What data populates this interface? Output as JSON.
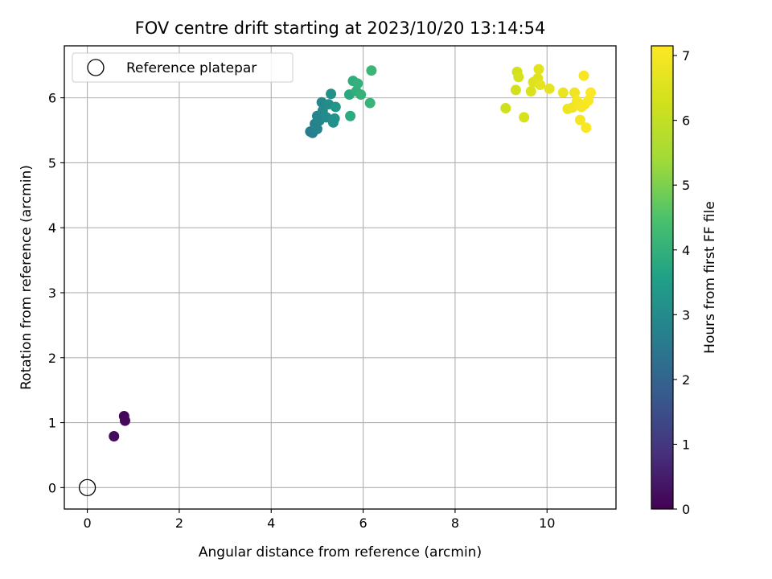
{
  "chart_data": {
    "type": "scatter",
    "title": "FOV centre drift starting at 2023/10/20 13:14:54",
    "xlabel": "Angular distance from reference (arcmin)",
    "ylabel": "Rotation from reference (arcmin)",
    "xlim": [
      -0.5,
      11.5
    ],
    "ylim": [
      -0.33,
      6.8
    ],
    "xticks": [
      0,
      2,
      4,
      6,
      8,
      10
    ],
    "yticks": [
      0,
      1,
      2,
      3,
      4,
      5,
      6
    ],
    "grid": true,
    "legend": {
      "position": "top-left",
      "entries": [
        {
          "label": "Reference platepar",
          "marker": "open-circle"
        }
      ]
    },
    "reference_point": {
      "x": 0,
      "y": 0
    },
    "colorbar": {
      "label": "Hours from first FF file",
      "colormap": "viridis",
      "range": [
        0,
        7.15
      ],
      "ticks": [
        0,
        1,
        2,
        3,
        4,
        5,
        6,
        7
      ]
    },
    "points": [
      {
        "x": 0.8,
        "y": 1.1,
        "c": 0.1
      },
      {
        "x": 0.82,
        "y": 1.03,
        "c": 0.15
      },
      {
        "x": 0.58,
        "y": 0.79,
        "c": 0.2
      },
      {
        "x": 4.85,
        "y": 5.48,
        "c": 2.6
      },
      {
        "x": 4.9,
        "y": 5.46,
        "c": 2.65
      },
      {
        "x": 4.95,
        "y": 5.6,
        "c": 2.7
      },
      {
        "x": 5.0,
        "y": 5.52,
        "c": 2.75
      },
      {
        "x": 5.0,
        "y": 5.72,
        "c": 2.8
      },
      {
        "x": 5.05,
        "y": 5.65,
        "c": 2.85
      },
      {
        "x": 5.1,
        "y": 5.93,
        "c": 2.9
      },
      {
        "x": 5.12,
        "y": 5.8,
        "c": 2.95
      },
      {
        "x": 5.2,
        "y": 5.7,
        "c": 3.0
      },
      {
        "x": 5.25,
        "y": 5.9,
        "c": 3.05
      },
      {
        "x": 5.3,
        "y": 6.06,
        "c": 3.1
      },
      {
        "x": 5.35,
        "y": 5.62,
        "c": 3.15
      },
      {
        "x": 5.38,
        "y": 5.68,
        "c": 3.2
      },
      {
        "x": 5.4,
        "y": 5.86,
        "c": 3.3
      },
      {
        "x": 5.7,
        "y": 6.05,
        "c": 3.8
      },
      {
        "x": 5.72,
        "y": 5.72,
        "c": 3.85
      },
      {
        "x": 5.78,
        "y": 6.26,
        "c": 3.9
      },
      {
        "x": 5.85,
        "y": 6.1,
        "c": 3.95
      },
      {
        "x": 5.88,
        "y": 6.22,
        "c": 4.0
      },
      {
        "x": 5.95,
        "y": 6.05,
        "c": 4.05
      },
      {
        "x": 6.15,
        "y": 5.92,
        "c": 4.1
      },
      {
        "x": 6.18,
        "y": 6.42,
        "c": 4.15
      },
      {
        "x": 9.1,
        "y": 5.84,
        "c": 6.2
      },
      {
        "x": 9.32,
        "y": 6.12,
        "c": 6.25
      },
      {
        "x": 9.35,
        "y": 6.4,
        "c": 6.3
      },
      {
        "x": 9.38,
        "y": 6.32,
        "c": 6.35
      },
      {
        "x": 9.5,
        "y": 5.7,
        "c": 6.4
      },
      {
        "x": 9.65,
        "y": 6.1,
        "c": 6.45
      },
      {
        "x": 9.7,
        "y": 6.24,
        "c": 6.5
      },
      {
        "x": 9.8,
        "y": 6.3,
        "c": 6.55
      },
      {
        "x": 9.82,
        "y": 6.44,
        "c": 6.6
      },
      {
        "x": 9.85,
        "y": 6.2,
        "c": 6.65
      },
      {
        "x": 10.05,
        "y": 6.14,
        "c": 6.7
      },
      {
        "x": 10.35,
        "y": 6.08,
        "c": 6.8
      },
      {
        "x": 10.45,
        "y": 5.83,
        "c": 6.85
      },
      {
        "x": 10.55,
        "y": 5.85,
        "c": 6.9
      },
      {
        "x": 10.6,
        "y": 6.08,
        "c": 6.92
      },
      {
        "x": 10.65,
        "y": 5.95,
        "c": 6.95
      },
      {
        "x": 10.7,
        "y": 5.88,
        "c": 6.97
      },
      {
        "x": 10.72,
        "y": 5.66,
        "c": 7.0
      },
      {
        "x": 10.75,
        "y": 5.86,
        "c": 7.02
      },
      {
        "x": 10.8,
        "y": 6.34,
        "c": 7.05
      },
      {
        "x": 10.82,
        "y": 5.9,
        "c": 7.06
      },
      {
        "x": 10.85,
        "y": 5.54,
        "c": 7.08
      },
      {
        "x": 10.9,
        "y": 5.96,
        "c": 7.1
      },
      {
        "x": 10.95,
        "y": 6.08,
        "c": 7.12
      }
    ]
  }
}
